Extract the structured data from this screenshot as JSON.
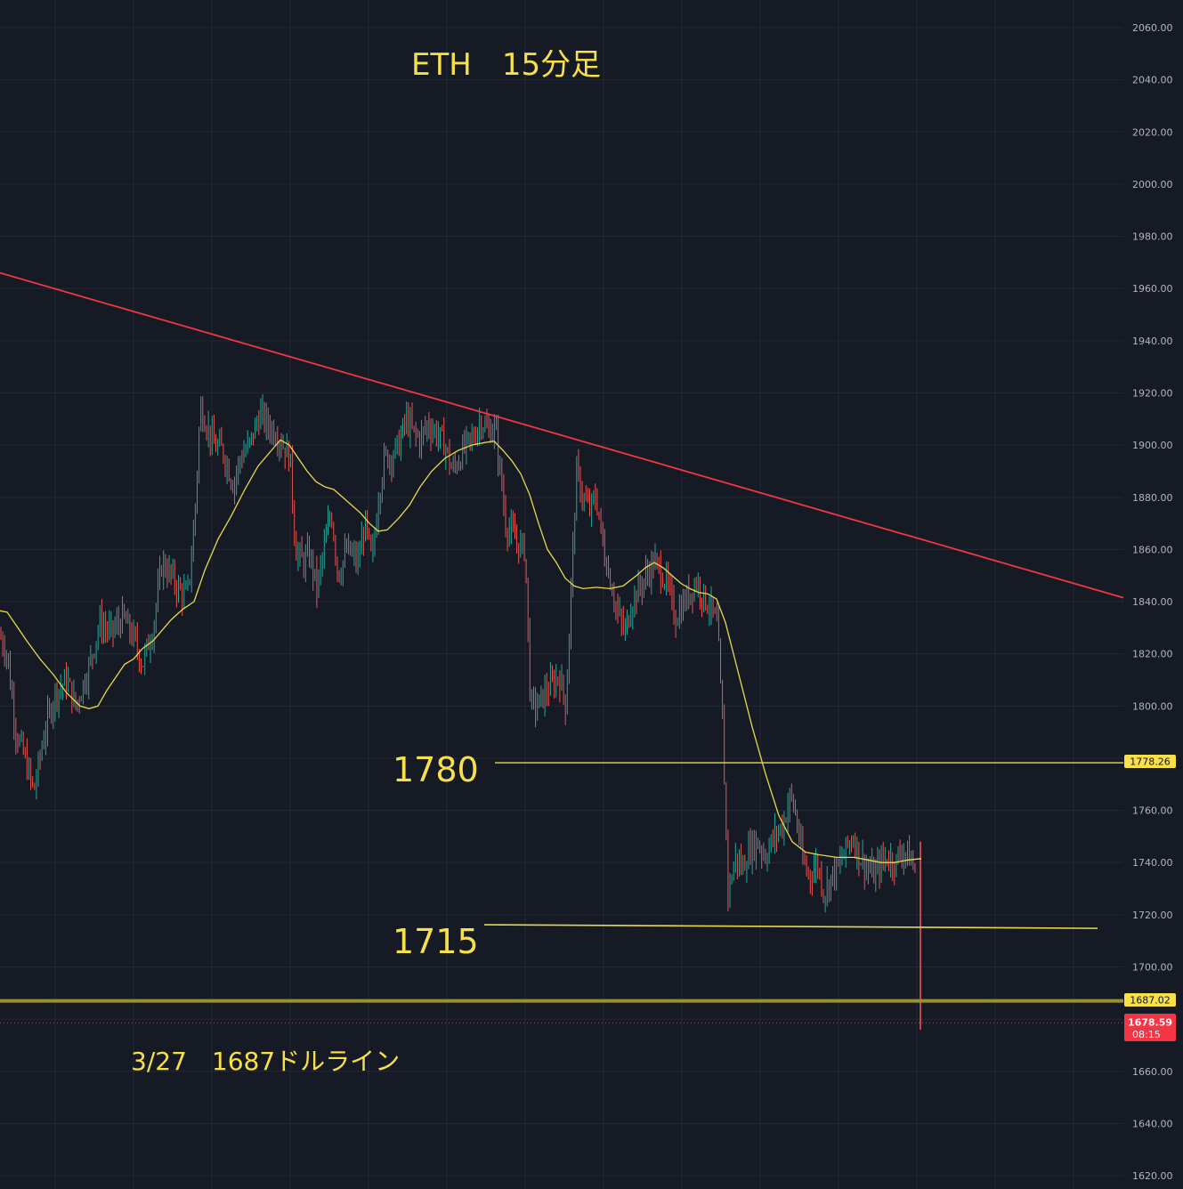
{
  "chart_data": {
    "type": "candlestick",
    "title": "ETH　15分足",
    "price_axis": {
      "ticks": [
        "2060.00",
        "2040.00",
        "2020.00",
        "2000.00",
        "1980.00",
        "1960.00",
        "1940.00",
        "1920.00",
        "1900.00",
        "1880.00",
        "1860.00",
        "1840.00",
        "1820.00",
        "1800.00",
        "1780.00",
        "1760.00",
        "1740.00",
        "1720.00",
        "1700.00",
        "1680.00",
        "1660.00",
        "1640.00",
        "1620.00"
      ],
      "range": [
        1616,
        2068
      ],
      "position": "right"
    },
    "colors": {
      "background": "#161a25",
      "grid": "#232836",
      "up": "#26a69a",
      "down": "#ef5350",
      "moving_average": "#e9d94a",
      "trendline": "#f23645",
      "level_line": "#e9d94a",
      "thick_level": "#9c9326",
      "annotation": "#f7e048",
      "current_price": "#f23645"
    },
    "annotations": {
      "title_line": "ETH　15分足",
      "level_1780": "1780",
      "level_1715": "1715",
      "note": "3/27　1687ドルライン"
    },
    "price_tags": {
      "resistance": "1778.26",
      "dollar_line": "1687.02",
      "current_price": "1678.59",
      "countdown": "08:15"
    },
    "levels": [
      {
        "label": "1780",
        "price": 1778.26
      },
      {
        "label": "1715",
        "price": 1715.5
      },
      {
        "label": "1687",
        "price": 1687.02
      }
    ],
    "trendline": {
      "from": [
        0,
        1966
      ],
      "to": [
        1262,
        1841.5
      ]
    },
    "price_path": [
      [
        0,
        1827
      ],
      [
        8,
        1820
      ],
      [
        18,
        1790
      ],
      [
        28,
        1780
      ],
      [
        38,
        1767
      ],
      [
        50,
        1790
      ],
      [
        62,
        1805
      ],
      [
        75,
        1810
      ],
      [
        85,
        1800
      ],
      [
        100,
        1815
      ],
      [
        112,
        1832
      ],
      [
        125,
        1828
      ],
      [
        138,
        1834
      ],
      [
        150,
        1826
      ],
      [
        160,
        1816
      ],
      [
        172,
        1830
      ],
      [
        182,
        1855
      ],
      [
        192,
        1850
      ],
      [
        202,
        1844
      ],
      [
        210,
        1842
      ],
      [
        215,
        1856
      ],
      [
        220,
        1880
      ],
      [
        225,
        1915
      ],
      [
        232,
        1908
      ],
      [
        240,
        1900
      ],
      [
        250,
        1898
      ],
      [
        262,
        1885
      ],
      [
        270,
        1895
      ],
      [
        280,
        1900
      ],
      [
        292,
        1912
      ],
      [
        300,
        1908
      ],
      [
        310,
        1905
      ],
      [
        318,
        1900
      ],
      [
        326,
        1895
      ],
      [
        332,
        1860
      ],
      [
        340,
        1855
      ],
      [
        348,
        1858
      ],
      [
        356,
        1845
      ],
      [
        364,
        1860
      ],
      [
        372,
        1875
      ],
      [
        380,
        1850
      ],
      [
        390,
        1860
      ],
      [
        402,
        1855
      ],
      [
        410,
        1870
      ],
      [
        418,
        1855
      ],
      [
        425,
        1880
      ],
      [
        432,
        1895
      ],
      [
        440,
        1896
      ],
      [
        448,
        1900
      ],
      [
        456,
        1910
      ],
      [
        464,
        1905
      ],
      [
        472,
        1902
      ],
      [
        480,
        1908
      ],
      [
        490,
        1905
      ],
      [
        500,
        1900
      ],
      [
        508,
        1890
      ],
      [
        516,
        1895
      ],
      [
        524,
        1900
      ],
      [
        532,
        1903
      ],
      [
        540,
        1910
      ],
      [
        548,
        1905
      ],
      [
        556,
        1907
      ],
      [
        562,
        1890
      ],
      [
        568,
        1870
      ],
      [
        575,
        1866
      ],
      [
        582,
        1862
      ],
      [
        590,
        1860
      ],
      [
        596,
        1800
      ],
      [
        604,
        1800
      ],
      [
        612,
        1805
      ],
      [
        620,
        1808
      ],
      [
        628,
        1812
      ],
      [
        636,
        1800
      ],
      [
        642,
        1850
      ],
      [
        648,
        1890
      ],
      [
        655,
        1880
      ],
      [
        662,
        1875
      ],
      [
        670,
        1880
      ],
      [
        678,
        1860
      ],
      [
        686,
        1848
      ],
      [
        694,
        1835
      ],
      [
        702,
        1828
      ],
      [
        710,
        1840
      ],
      [
        718,
        1845
      ],
      [
        726,
        1850
      ],
      [
        734,
        1855
      ],
      [
        742,
        1852
      ],
      [
        750,
        1846
      ],
      [
        758,
        1834
      ],
      [
        766,
        1838
      ],
      [
        774,
        1843
      ],
      [
        782,
        1848
      ],
      [
        790,
        1842
      ],
      [
        798,
        1838
      ],
      [
        806,
        1830
      ],
      [
        812,
        1790
      ],
      [
        818,
        1728
      ],
      [
        826,
        1742
      ],
      [
        834,
        1738
      ],
      [
        842,
        1745
      ],
      [
        850,
        1748
      ],
      [
        860,
        1743
      ],
      [
        870,
        1750
      ],
      [
        880,
        1755
      ],
      [
        888,
        1766
      ],
      [
        894,
        1758
      ],
      [
        902,
        1740
      ],
      [
        910,
        1735
      ],
      [
        918,
        1740
      ],
      [
        926,
        1728
      ],
      [
        934,
        1735
      ],
      [
        942,
        1738
      ],
      [
        950,
        1745
      ],
      [
        958,
        1750
      ],
      [
        966,
        1742
      ],
      [
        974,
        1738
      ],
      [
        982,
        1735
      ],
      [
        990,
        1740
      ],
      [
        998,
        1742
      ],
      [
        1006,
        1740
      ],
      [
        1014,
        1745
      ],
      [
        1022,
        1742
      ],
      [
        1030,
        1735
      ],
      [
        1034,
        1676
      ]
    ],
    "ma_path": [
      [
        0,
        1836.5
      ],
      [
        8,
        1836
      ],
      [
        18,
        1831
      ],
      [
        30,
        1825
      ],
      [
        45,
        1818
      ],
      [
        60,
        1812
      ],
      [
        75,
        1805
      ],
      [
        90,
        1800
      ],
      [
        100,
        1799
      ],
      [
        110,
        1800
      ],
      [
        120,
        1806
      ],
      [
        130,
        1811
      ],
      [
        140,
        1816
      ],
      [
        150,
        1818
      ],
      [
        160,
        1822
      ],
      [
        172,
        1825
      ],
      [
        182,
        1829
      ],
      [
        192,
        1833
      ],
      [
        205,
        1837
      ],
      [
        218,
        1840
      ],
      [
        230,
        1852
      ],
      [
        245,
        1864
      ],
      [
        260,
        1873
      ],
      [
        275,
        1883
      ],
      [
        290,
        1892
      ],
      [
        305,
        1898
      ],
      [
        315,
        1902
      ],
      [
        325,
        1900
      ],
      [
        335,
        1895
      ],
      [
        345,
        1890
      ],
      [
        355,
        1886
      ],
      [
        365,
        1884
      ],
      [
        375,
        1883
      ],
      [
        385,
        1880
      ],
      [
        395,
        1877
      ],
      [
        405,
        1874
      ],
      [
        415,
        1870
      ],
      [
        425,
        1867
      ],
      [
        435,
        1867.5
      ],
      [
        448,
        1872
      ],
      [
        460,
        1877
      ],
      [
        472,
        1884
      ],
      [
        485,
        1890
      ],
      [
        500,
        1895
      ],
      [
        515,
        1898
      ],
      [
        530,
        1900
      ],
      [
        545,
        1901
      ],
      [
        555,
        1901.5
      ],
      [
        565,
        1898
      ],
      [
        575,
        1894
      ],
      [
        585,
        1889
      ],
      [
        595,
        1881
      ],
      [
        605,
        1870
      ],
      [
        615,
        1860
      ],
      [
        625,
        1855
      ],
      [
        635,
        1849
      ],
      [
        645,
        1846
      ],
      [
        655,
        1845
      ],
      [
        670,
        1845.5
      ],
      [
        685,
        1845
      ],
      [
        700,
        1846
      ],
      [
        715,
        1850
      ],
      [
        725,
        1853
      ],
      [
        735,
        1855
      ],
      [
        745,
        1853
      ],
      [
        755,
        1850
      ],
      [
        765,
        1847
      ],
      [
        775,
        1845
      ],
      [
        785,
        1843.5
      ],
      [
        795,
        1843
      ],
      [
        805,
        1841
      ],
      [
        815,
        1832
      ],
      [
        830,
        1812
      ],
      [
        845,
        1792
      ],
      [
        860,
        1774
      ],
      [
        875,
        1758
      ],
      [
        890,
        1748
      ],
      [
        905,
        1744
      ],
      [
        920,
        1743
      ],
      [
        940,
        1742
      ],
      [
        960,
        1742
      ],
      [
        975,
        1741
      ],
      [
        990,
        1740
      ],
      [
        1005,
        1740
      ],
      [
        1020,
        1741
      ],
      [
        1035,
        1741.5
      ]
    ]
  }
}
